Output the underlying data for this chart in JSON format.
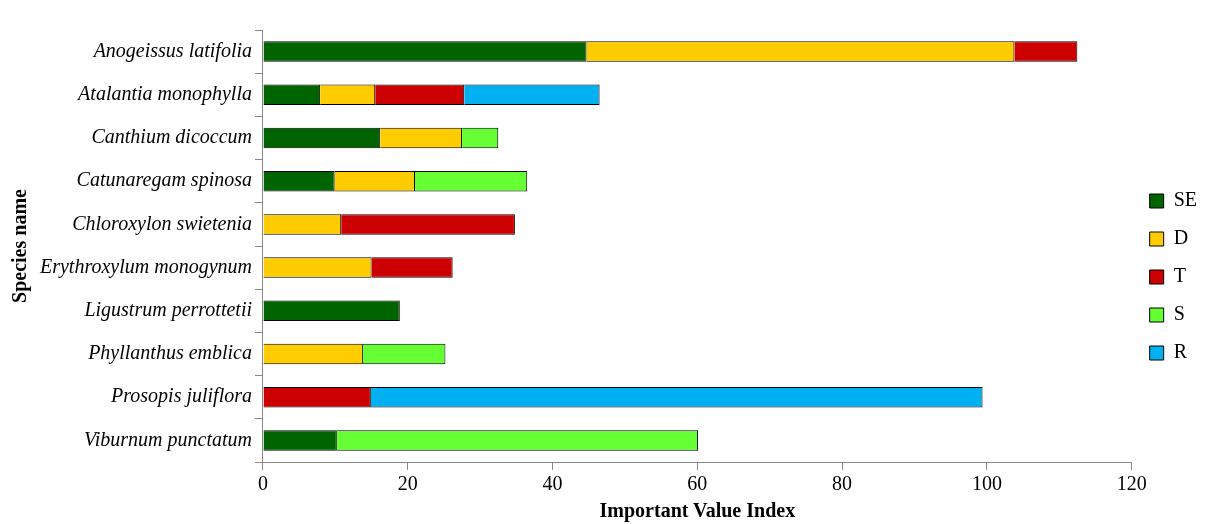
{
  "chart_data": {
    "type": "bar",
    "orientation": "horizontal",
    "stacked": true,
    "xlabel": "Important Value Index",
    "ylabel": "Species name",
    "categories": [
      "Anogeissus latifolia",
      "Atalantia monophylla",
      "Canthium dicoccum",
      "Catunaregam spinosa",
      "Chloroxylon swietenia",
      "Erythroxylum monogynum",
      "Ligustrum perrottetii",
      "Phyllanthus emblica",
      "Prosopis juliflora",
      "Viburnum punctatum"
    ],
    "series": [
      {
        "name": "SE",
        "color": "#006400",
        "values": [
          44.7,
          7.9,
          16.2,
          9.9,
          null,
          null,
          18.9,
          null,
          null,
          10.2
        ]
      },
      {
        "name": "D",
        "color": "#ffcc00",
        "values": [
          59.1,
          7.6,
          11.3,
          11.1,
          10.8,
          15.0,
          null,
          13.8,
          null,
          null
        ]
      },
      {
        "name": "T",
        "color": "#cc0000",
        "values": [
          8.7,
          12.3,
          null,
          null,
          24.0,
          11.2,
          null,
          null,
          14.9,
          null
        ]
      },
      {
        "name": "S",
        "color": "#66ff33",
        "values": [
          null,
          null,
          5.0,
          15.5,
          null,
          null,
          null,
          11.4,
          null,
          49.9
        ]
      },
      {
        "name": "R",
        "color": "#00b0f0",
        "values": [
          null,
          18.7,
          null,
          null,
          null,
          null,
          null,
          null,
          84.5,
          null
        ]
      }
    ],
    "xlim": [
      0,
      120
    ],
    "xticks": [
      0,
      20,
      40,
      60,
      80,
      100,
      120
    ],
    "grid": false,
    "legend": "right"
  }
}
